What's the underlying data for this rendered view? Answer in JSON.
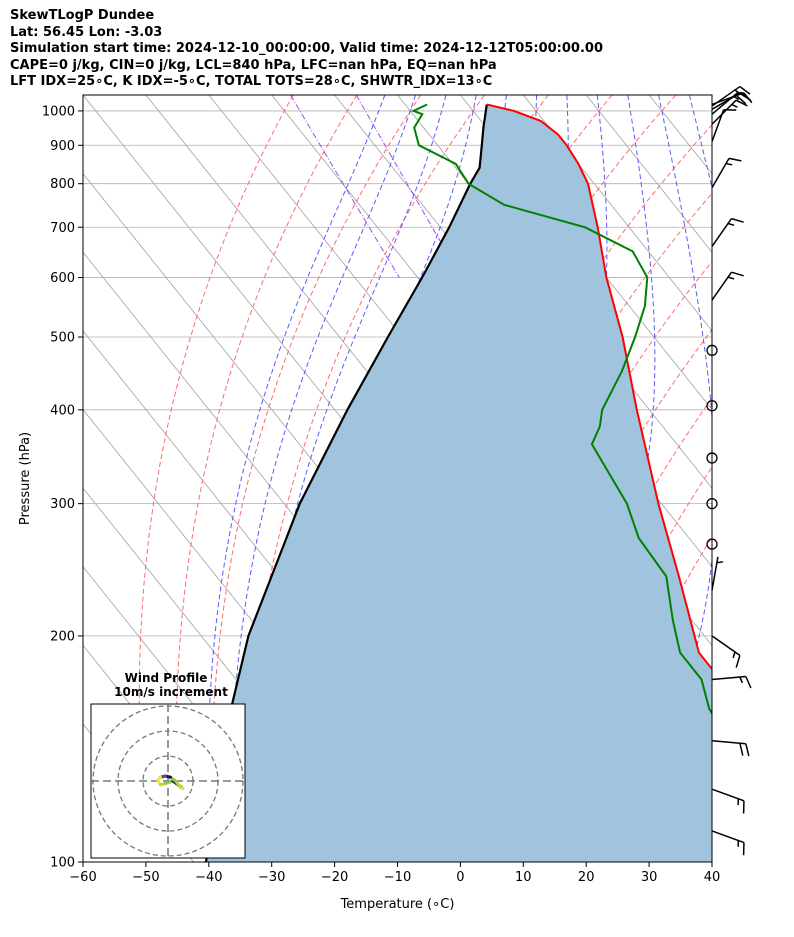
{
  "header": {
    "line1": "SkewTLogP Dundee",
    "line2": "Lat: 56.45   Lon: -3.03",
    "line3": "Simulation start time: 2024-12-10_00:00:00, Valid time: 2024-12-12T05:00:00.00",
    "line4": "CAPE=0 j/kg, CIN=0 j/kg, LCL=840 hPa, LFC=nan hPa, EQ=nan hPa",
    "line5": "LFT IDX=25∘C, K IDX=-5∘C, TOTAL TOTS=28∘C, SHWTR_IDX=13∘C"
  },
  "chart_data": {
    "type": "line",
    "title": "SkewTLogP Dundee",
    "xlabel": "Temperature (∘C)",
    "ylabel": "Pressure (hPa)",
    "xlim": [
      -60,
      40
    ],
    "ylim": [
      1050,
      100
    ],
    "y_scale": "log",
    "x_ticks": [
      -60,
      -50,
      -40,
      -30,
      -20,
      -10,
      0,
      10,
      20,
      30,
      40
    ],
    "x_tick_labels": [
      "−60",
      "−50",
      "−40",
      "−30",
      "−20",
      "−10",
      "0",
      "10",
      "20",
      "30",
      "40"
    ],
    "y_ticks": [
      1000,
      900,
      800,
      700,
      600,
      500,
      400,
      300,
      200,
      100
    ],
    "y_tick_labels": [
      "1000",
      "900",
      "800",
      "700",
      "600",
      "500",
      "400",
      "300",
      "200",
      "100"
    ],
    "grid": true,
    "series": [
      {
        "role": "temperature",
        "color": "#ff0000",
        "p": [
          1020,
          1000,
          970,
          930,
          900,
          850,
          800,
          700,
          600,
          500,
          400,
          300,
          240,
          190,
          170,
          140,
          125,
          100
        ],
        "t": [
          3,
          6.5,
          9.5,
          10.5,
          10.5,
          10,
          9,
          5,
          0,
          -5,
          -12,
          -20.5,
          -26.5,
          -33,
          -33,
          -32.5,
          -32,
          -26
        ]
      },
      {
        "role": "dewpoint",
        "color": "#008000",
        "p": [
          1020,
          1000,
          990,
          950,
          900,
          850,
          800,
          750,
          700,
          650,
          600,
          550,
          500,
          450,
          400,
          380,
          360,
          300,
          270,
          240,
          210,
          190,
          175,
          160,
          145,
          130,
          118,
          100
        ],
        "t": [
          -6.5,
          -9.5,
          -8.5,
          -11.5,
          -13,
          -9.5,
          -10,
          -7,
          3,
          7.5,
          6.5,
          2.5,
          -3,
          -9.5,
          -17.5,
          -20,
          -23.5,
          -25.5,
          -28,
          -28.5,
          -33,
          -36,
          -36,
          -38.5,
          -39.5,
          -40,
          -41,
          -43
        ]
      },
      {
        "role": "parcel",
        "color": "#000000",
        "p": [
          1020,
          950,
          900,
          840,
          800,
          700,
          600,
          500,
          400,
          300,
          200,
          150,
          100
        ],
        "t": [
          3,
          -0.5,
          -3,
          -6.2,
          -9.7,
          -18.6,
          -29.3,
          -42.3,
          -58,
          -77.5,
          -102.5,
          -118,
          -138
        ]
      }
    ],
    "shading": {
      "between": [
        "parcel",
        "temperature"
      ],
      "color": "#a0c4de"
    },
    "isotherms": {
      "color": "#a0a0a0",
      "spacing_c": 10,
      "min": -140,
      "max": 40
    },
    "dry_adiabats": {
      "color": "#ff6b6b",
      "theta_c": [
        -30,
        -20,
        -10,
        0,
        10,
        20,
        30,
        40,
        50,
        60,
        70,
        80,
        90,
        100
      ]
    },
    "moist_adiabats": {
      "color": "#5a5aff",
      "theta_w_c": [
        -15,
        -10,
        -5,
        0,
        5,
        10,
        15,
        20,
        25,
        30,
        35
      ]
    },
    "mixing_ratio": {
      "color": "#a050e0",
      "style": "dash-dot"
    },
    "wind_barbs": [
      {
        "p": 1020,
        "speed_kt": 10,
        "dir_deg": 250
      },
      {
        "p": 1015,
        "speed_kt": 15,
        "dir_deg": 235
      },
      {
        "p": 1005,
        "speed_kt": 20,
        "dir_deg": 240
      },
      {
        "p": 990,
        "speed_kt": 15,
        "dir_deg": 230
      },
      {
        "p": 960,
        "speed_kt": 15,
        "dir_deg": 225
      },
      {
        "p": 910,
        "speed_kt": 10,
        "dir_deg": 200
      },
      {
        "p": 790,
        "speed_kt": 15,
        "dir_deg": 210
      },
      {
        "p": 660,
        "speed_kt": 15,
        "dir_deg": 215
      },
      {
        "p": 560,
        "speed_kt": 15,
        "dir_deg": 215
      },
      {
        "p": 480,
        "speed_kt": 0,
        "dir_deg": 0
      },
      {
        "p": 405,
        "speed_kt": 0,
        "dir_deg": 0
      },
      {
        "p": 345,
        "speed_kt": 0,
        "dir_deg": 0
      },
      {
        "p": 300,
        "speed_kt": 0,
        "dir_deg": 0
      },
      {
        "p": 265,
        "speed_kt": 0,
        "dir_deg": 0
      },
      {
        "p": 230,
        "speed_kt": 5,
        "dir_deg": 190
      },
      {
        "p": 200,
        "speed_kt": 15,
        "dir_deg": 305
      },
      {
        "p": 175,
        "speed_kt": 15,
        "dir_deg": 265
      },
      {
        "p": 145,
        "speed_kt": 20,
        "dir_deg": 275
      },
      {
        "p": 125,
        "speed_kt": 15,
        "dir_deg": 290
      },
      {
        "p": 110,
        "speed_kt": 15,
        "dir_deg": 290
      }
    ],
    "wind_profile": {
      "title": "Wind Profile",
      "subtitle": "10m/s increment",
      "rings_m_s": [
        10,
        20,
        30
      ],
      "hodograph_points": [
        [
          -4,
          0
        ],
        [
          -3,
          -1.5
        ],
        [
          -1,
          -1
        ],
        [
          2,
          0
        ],
        [
          4,
          -1.5
        ],
        [
          6,
          -3
        ],
        [
          5,
          -2.5
        ],
        [
          3,
          0
        ],
        [
          1,
          1.5
        ],
        [
          -1,
          2
        ],
        [
          -3,
          1.5
        ],
        [
          -4,
          0.5
        ]
      ],
      "colors": [
        "#f0e442",
        "#b8de29",
        "#7ad151",
        "#440154",
        "#3b528b"
      ]
    }
  }
}
